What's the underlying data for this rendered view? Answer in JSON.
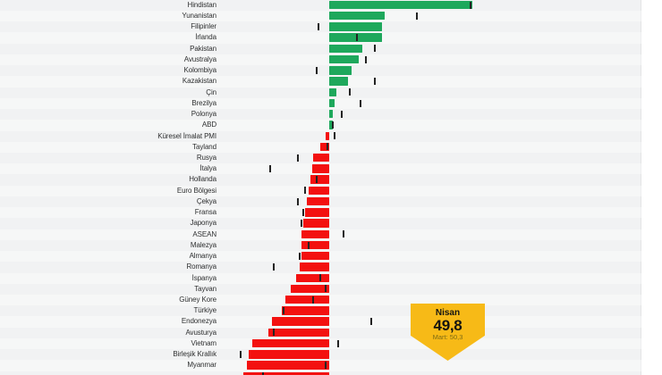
{
  "badge": {
    "month": "Nisan",
    "value": "49,8",
    "previous": "Mart: 50,3",
    "color": "#f7ba17",
    "subtext_color": "#7e6c15"
  },
  "chart_data": {
    "type": "bar",
    "orientation": "horizontal-diverging",
    "baseline": 50,
    "xlim": [
      44,
      59
    ],
    "grid": false,
    "legend": "none",
    "current_period_label": "Nisan",
    "previous_period_label": "Mart",
    "colors": {
      "above_baseline": "#1ea85c",
      "below_baseline": "#f31110",
      "previous_tick": "#232323"
    },
    "last_row_clipped": true,
    "series": [
      {
        "name": "Hindistan",
        "nisan": 58.2,
        "mart": 58.1
      },
      {
        "name": "Yunanistan",
        "nisan": 53.2,
        "mart": 55.0
      },
      {
        "name": "Filipinler",
        "nisan": 53.0,
        "mart": 49.4
      },
      {
        "name": "İrlanda",
        "nisan": 53.0,
        "mart": 51.6
      },
      {
        "name": "Pakistan",
        "nisan": 51.9,
        "mart": 52.6
      },
      {
        "name": "Avustralya",
        "nisan": 51.7,
        "mart": 52.1
      },
      {
        "name": "Kolombiya",
        "nisan": 51.3,
        "mart": 49.3
      },
      {
        "name": "Kazakistan",
        "nisan": 51.1,
        "mart": 52.6
      },
      {
        "name": "Çin",
        "nisan": 50.4,
        "mart": 51.2
      },
      {
        "name": "Brezilya",
        "nisan": 50.3,
        "mart": 51.8
      },
      {
        "name": "Polonya",
        "nisan": 50.2,
        "mart": 50.7
      },
      {
        "name": "ABD",
        "nisan": 50.2,
        "mart": 50.2
      },
      {
        "name": "Küresel İmalat PMI",
        "nisan": 49.8,
        "mart": 50.3
      },
      {
        "name": "Tayland",
        "nisan": 49.5,
        "mart": 49.9
      },
      {
        "name": "Rusya",
        "nisan": 49.1,
        "mart": 48.2
      },
      {
        "name": "İtalya",
        "nisan": 49.0,
        "mart": 46.6
      },
      {
        "name": "Hollanda",
        "nisan": 48.9,
        "mart": 49.3
      },
      {
        "name": "Euro Bölgesi",
        "nisan": 48.8,
        "mart": 48.6
      },
      {
        "name": "Çekya",
        "nisan": 48.7,
        "mart": 48.2
      },
      {
        "name": "Fransa",
        "nisan": 48.6,
        "mart": 48.5
      },
      {
        "name": "Japonya",
        "nisan": 48.5,
        "mart": 48.4
      },
      {
        "name": "ASEAN",
        "nisan": 48.4,
        "mart": 50.8
      },
      {
        "name": "Malezya",
        "nisan": 48.4,
        "mart": 48.8
      },
      {
        "name": "Almanya",
        "nisan": 48.4,
        "mart": 48.3
      },
      {
        "name": "Romanya",
        "nisan": 48.3,
        "mart": 46.8
      },
      {
        "name": "İspanya",
        "nisan": 48.1,
        "mart": 49.5
      },
      {
        "name": "Tayvan",
        "nisan": 47.8,
        "mart": 49.8
      },
      {
        "name": "Güney Kore",
        "nisan": 47.5,
        "mart": 49.1
      },
      {
        "name": "Türkiye",
        "nisan": 47.3,
        "mart": 47.4
      },
      {
        "name": "Endonezya",
        "nisan": 46.7,
        "mart": 52.4
      },
      {
        "name": "Avusturya",
        "nisan": 46.5,
        "mart": 46.8
      },
      {
        "name": "Vietnam",
        "nisan": 45.6,
        "mart": 50.5
      },
      {
        "name": "Birleşik Krallık",
        "nisan": 45.4,
        "mart": 44.9
      },
      {
        "name": "Myanmar",
        "nisan": 45.3,
        "mart": 49.8
      },
      {
        "name": "",
        "nisan": 45.1,
        "mart": 46.2
      }
    ]
  }
}
